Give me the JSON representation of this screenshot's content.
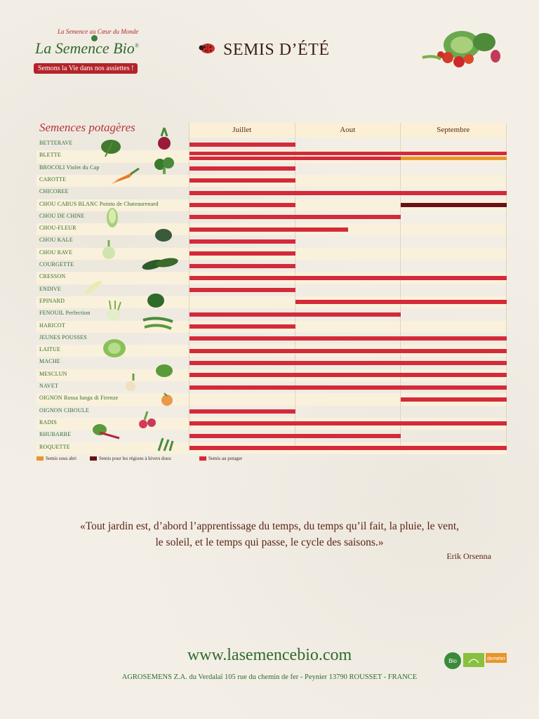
{
  "header": {
    "logo_tagline": "La Semence au Cœur du Monde",
    "logo_name": "La Semence Bio",
    "logo_mark": "®",
    "logo_slogan": "Semons la Vie dans nos assiettes !",
    "title": "SEMIS D’ÉTÉ"
  },
  "table": {
    "section_title": "Semences potagères",
    "months": [
      "Juillet",
      "Aout",
      "Septembre"
    ],
    "rows": [
      {
        "name": "BETTERAVE",
        "suffix": "",
        "bars": [
          {
            "start": 0,
            "end": 1,
            "type": "potager"
          }
        ]
      },
      {
        "name": "BLETTE",
        "suffix": "",
        "bars": [
          {
            "start": 0,
            "end": 3,
            "type": "potager"
          },
          {
            "start": 0,
            "end": 2,
            "type": "potager"
          },
          {
            "start": 2,
            "end": 3,
            "type": "abri"
          }
        ]
      },
      {
        "name": "BROCOLI",
        "suffix": "Violet du Cap",
        "bars": [
          {
            "start": 0,
            "end": 1,
            "type": "potager"
          }
        ]
      },
      {
        "name": "CAROTTE",
        "suffix": "",
        "bars": [
          {
            "start": 0,
            "end": 1,
            "type": "potager"
          }
        ]
      },
      {
        "name": "CHICOREE",
        "suffix": "",
        "bars": [
          {
            "start": 0,
            "end": 3,
            "type": "potager"
          }
        ]
      },
      {
        "name": "CHOU CABUS BLANC",
        "suffix": "Pointu de Chateaurenard",
        "bars": [
          {
            "start": 0,
            "end": 1,
            "type": "potager"
          },
          {
            "start": 2,
            "end": 3,
            "type": "doux"
          }
        ]
      },
      {
        "name": "CHOU DE CHINE",
        "suffix": "",
        "bars": [
          {
            "start": 0,
            "end": 2,
            "type": "potager"
          }
        ]
      },
      {
        "name": "CHOU-FLEUR",
        "suffix": "",
        "bars": [
          {
            "start": 0,
            "end": 1.5,
            "type": "potager"
          }
        ]
      },
      {
        "name": "CHOU KALE",
        "suffix": "",
        "bars": [
          {
            "start": 0,
            "end": 1,
            "type": "potager"
          }
        ]
      },
      {
        "name": "CHOU RAVE",
        "suffix": "",
        "bars": [
          {
            "start": 0,
            "end": 1,
            "type": "potager"
          }
        ]
      },
      {
        "name": "COURGETTE",
        "suffix": "",
        "bars": [
          {
            "start": 0,
            "end": 1,
            "type": "potager"
          }
        ]
      },
      {
        "name": "CRESSON",
        "suffix": "",
        "bars": [
          {
            "start": 0,
            "end": 3,
            "type": "potager"
          }
        ]
      },
      {
        "name": "ENDIVE",
        "suffix": "",
        "bars": [
          {
            "start": 0,
            "end": 1,
            "type": "potager"
          }
        ]
      },
      {
        "name": "EPINARD",
        "suffix": "",
        "bars": [
          {
            "start": 1,
            "end": 3,
            "type": "potager"
          }
        ]
      },
      {
        "name": "FENOUIL",
        "suffix": "Perfection",
        "bars": [
          {
            "start": 0,
            "end": 2,
            "type": "potager"
          }
        ]
      },
      {
        "name": "HARICOT",
        "suffix": "",
        "bars": [
          {
            "start": 0,
            "end": 1,
            "type": "potager"
          }
        ]
      },
      {
        "name": "JEUNES POUSSES",
        "suffix": "",
        "bars": [
          {
            "start": 0,
            "end": 3,
            "type": "potager"
          }
        ]
      },
      {
        "name": "LAITUE",
        "suffix": "",
        "bars": [
          {
            "start": 0,
            "end": 3,
            "type": "potager"
          }
        ]
      },
      {
        "name": "MACHE",
        "suffix": "",
        "bars": [
          {
            "start": 0,
            "end": 3,
            "type": "potager"
          }
        ]
      },
      {
        "name": "MESCLUN",
        "suffix": "",
        "bars": [
          {
            "start": 0,
            "end": 3,
            "type": "potager"
          }
        ]
      },
      {
        "name": "NAVET",
        "suffix": "",
        "bars": [
          {
            "start": 0,
            "end": 3,
            "type": "potager"
          }
        ]
      },
      {
        "name": "OIGNON",
        "suffix": "Rossa lunga di Firenze",
        "bars": [
          {
            "start": 2,
            "end": 3,
            "type": "potager"
          }
        ]
      },
      {
        "name": "OIGNON CIBOULE",
        "suffix": "",
        "bars": [
          {
            "start": 0,
            "end": 1,
            "type": "potager"
          }
        ]
      },
      {
        "name": "RADIS",
        "suffix": "",
        "bars": [
          {
            "start": 0,
            "end": 3,
            "type": "potager"
          }
        ]
      },
      {
        "name": "RHUBARBE",
        "suffix": "",
        "bars": [
          {
            "start": 0,
            "end": 2,
            "type": "potager"
          }
        ]
      },
      {
        "name": "ROQUETTE",
        "suffix": "",
        "bars": [
          {
            "start": 0,
            "end": 3,
            "type": "potager"
          }
        ]
      }
    ],
    "legend": [
      {
        "label": "Semis sous abri",
        "color": "#e8962b"
      },
      {
        "label": "Semis pour les régions à hivers doux",
        "color": "#6b1016"
      },
      {
        "label": "Semis au potager",
        "color": "#d42a3a"
      }
    ]
  },
  "colors": {
    "potager": "#d42a3a",
    "abri": "#e8962b",
    "doux": "#6b1016"
  },
  "quote": {
    "line1": "«Tout jardin est, d’abord l’apprentissage du temps, du temps qu’il fait, la pluie, le vent,",
    "line2": "le soleil, et le temps qui passe, le cycle des saisons.»",
    "author": "Erik Orsenna"
  },
  "footer": {
    "website": "www.lasemencebio.com",
    "address": "AGROSEMENS Z.A. du Verdalaï 105 rue du chemin de fer - Peynier 13790 ROUSSET - FRANCE",
    "cert_labels": [
      "Bio",
      "demeter"
    ]
  }
}
